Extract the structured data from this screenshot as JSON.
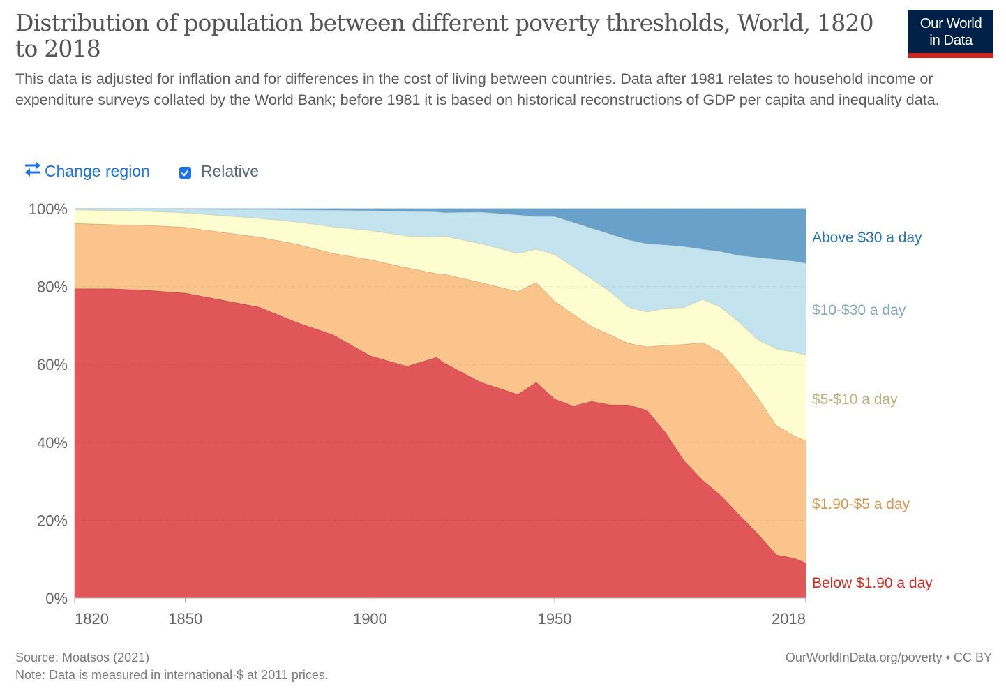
{
  "header": {
    "title": "Distribution of population between different poverty thresholds, World, 1820 to 2018",
    "subtitle": "This data is adjusted for inflation and for differences in the cost of living between countries. Data after 1981 relates to household income or expenditure surveys collated by the World Bank; before 1981 it is based on historical reconstructions of GDP per capita and inequality data.",
    "logo_line1": "Our World",
    "logo_line2": "in Data"
  },
  "controls": {
    "change_region_label": "Change region",
    "change_region_icon": "swap-arrows-icon",
    "relative_label": "Relative",
    "relative_checked": true
  },
  "colors": {
    "accent": "#1a73e8",
    "logo_bg": "#002147",
    "logo_bar": "#ce261e"
  },
  "chart_data": {
    "type": "area",
    "stacked": true,
    "relative": true,
    "title": "Distribution of population between different poverty thresholds, World, 1820 to 2018",
    "xlabel": "",
    "ylabel": "",
    "xlim": [
      1820,
      2018
    ],
    "ylim": [
      0,
      100
    ],
    "x_ticks": [
      "1820",
      "1850",
      "1900",
      "1950",
      "2018"
    ],
    "y_ticks": [
      "0%",
      "20%",
      "40%",
      "60%",
      "80%",
      "100%"
    ],
    "grid": true,
    "legend_position": "right",
    "x": [
      1820,
      1830,
      1840,
      1850,
      1860,
      1870,
      1880,
      1890,
      1900,
      1910,
      1918,
      1920,
      1930,
      1940,
      1945,
      1950,
      1955,
      1960,
      1965,
      1970,
      1975,
      1980,
      1985,
      1990,
      1995,
      2000,
      2005,
      2010,
      2015,
      2018
    ],
    "series": [
      {
        "name": "Below $1.90 a day",
        "color": "#e15759",
        "label_color": "#d42b21",
        "values": [
          79.4,
          79.4,
          79.0,
          78.3,
          76.5,
          74.7,
          70.8,
          67.6,
          62.2,
          59.5,
          61.8,
          60.4,
          55.4,
          52.3,
          55.4,
          51.1,
          49.3,
          50.5,
          49.6,
          49.6,
          48.2,
          42.5,
          35.3,
          30.3,
          26.3,
          21.3,
          16.5,
          11.1,
          10.2,
          9.0
        ]
      },
      {
        "name": "$1.90-$5 a day",
        "color": "#fbc48d",
        "label_color": "#d9964f",
        "values": [
          16.8,
          16.5,
          16.7,
          16.9,
          17.4,
          18.0,
          20.1,
          20.9,
          24.7,
          25.3,
          21.5,
          22.8,
          25.6,
          26.4,
          25.6,
          25.1,
          23.6,
          19.2,
          18.0,
          15.8,
          16.3,
          22.4,
          29.8,
          35.3,
          36.8,
          36.4,
          34.9,
          33.2,
          31.4,
          31.3
        ]
      },
      {
        "name": "$5-$10 a day",
        "color": "#fefdd0",
        "label_color": "#b5b27c",
        "values": [
          3.5,
          3.6,
          3.6,
          3.7,
          4.3,
          4.8,
          5.7,
          6.8,
          7.5,
          8.2,
          9.4,
          9.8,
          10.0,
          9.8,
          8.6,
          12.0,
          12.2,
          12.2,
          11.1,
          9.3,
          9.0,
          9.5,
          9.5,
          11.1,
          11.6,
          13.1,
          14.9,
          19.7,
          21.5,
          22.2
        ]
      },
      {
        "name": "$10-$30 a day",
        "color": "#c3e3ef",
        "label_color": "#85aabc",
        "values": [
          0.2,
          0.4,
          0.6,
          1.0,
          1.6,
          2.3,
          3.1,
          4.3,
          5.1,
          6.3,
          6.5,
          6.0,
          8.1,
          9.9,
          8.4,
          9.8,
          11.4,
          13.1,
          14.8,
          17.3,
          17.5,
          16.3,
          15.7,
          12.9,
          14.3,
          17.2,
          21.2,
          23.0,
          23.4,
          23.5
        ]
      },
      {
        "name": "Above $30 a day",
        "color": "#6aa1ca",
        "label_color": "#2a74b0",
        "values": [
          0.1,
          0.1,
          0.1,
          0.1,
          0.2,
          0.2,
          0.3,
          0.4,
          0.5,
          0.7,
          0.8,
          1.0,
          0.9,
          1.6,
          2.0,
          2.0,
          3.5,
          5.0,
          6.5,
          8.0,
          9.0,
          9.3,
          9.7,
          10.4,
          11.0,
          12.0,
          12.5,
          13.0,
          13.5,
          14.0
        ]
      }
    ]
  },
  "footer": {
    "source": "Source: Moatsos (2021)",
    "note": "Note: Data is measured in international-$ at 2011 prices.",
    "credit": "OurWorldInData.org/poverty • CC BY"
  }
}
